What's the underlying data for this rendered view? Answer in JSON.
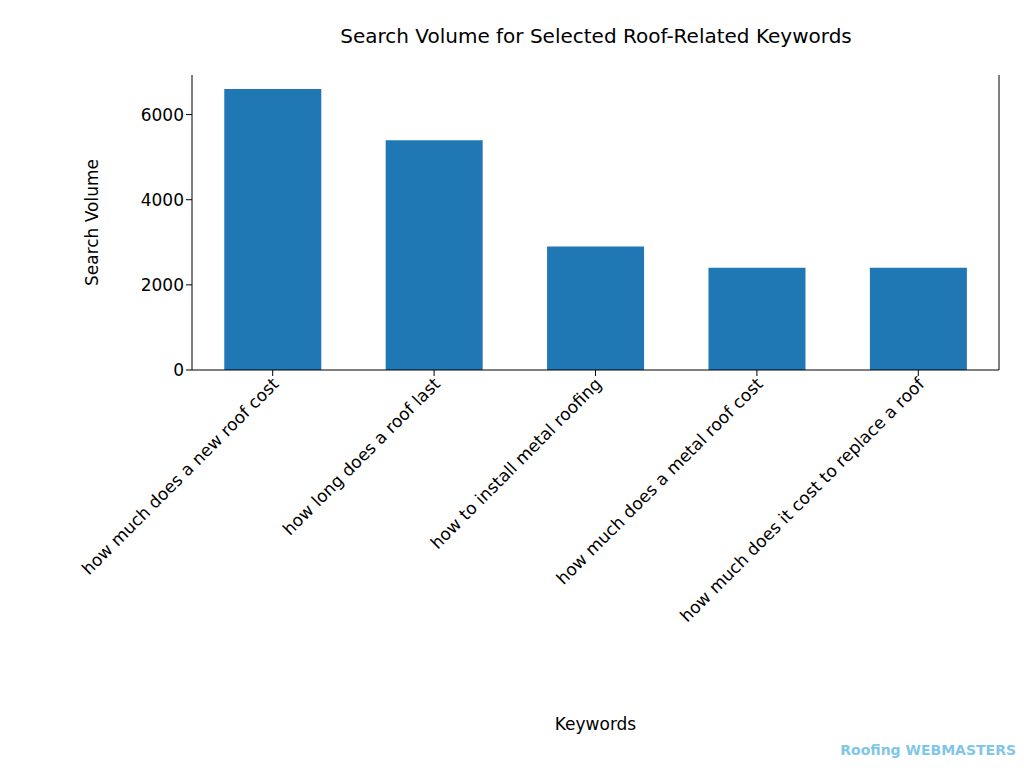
{
  "chart_data": {
    "type": "bar",
    "title": "Search Volume for Selected Roof-Related Keywords",
    "x_label": "Keywords",
    "y_label": "Search Volume",
    "categories": [
      "how much does a new roof cost",
      "how long does a roof last",
      "how to install metal roofing",
      "how much does a metal roof cost",
      "how much does it cost to replace a roof"
    ],
    "values": [
      6600,
      5400,
      2900,
      2400,
      2400
    ],
    "color": "#1f77b4",
    "ylim": [
      0,
      6930
    ],
    "yticks": [
      0,
      2000,
      4000,
      6000
    ],
    "grid": false,
    "watermark": "Roofing WEBMASTERS"
  }
}
